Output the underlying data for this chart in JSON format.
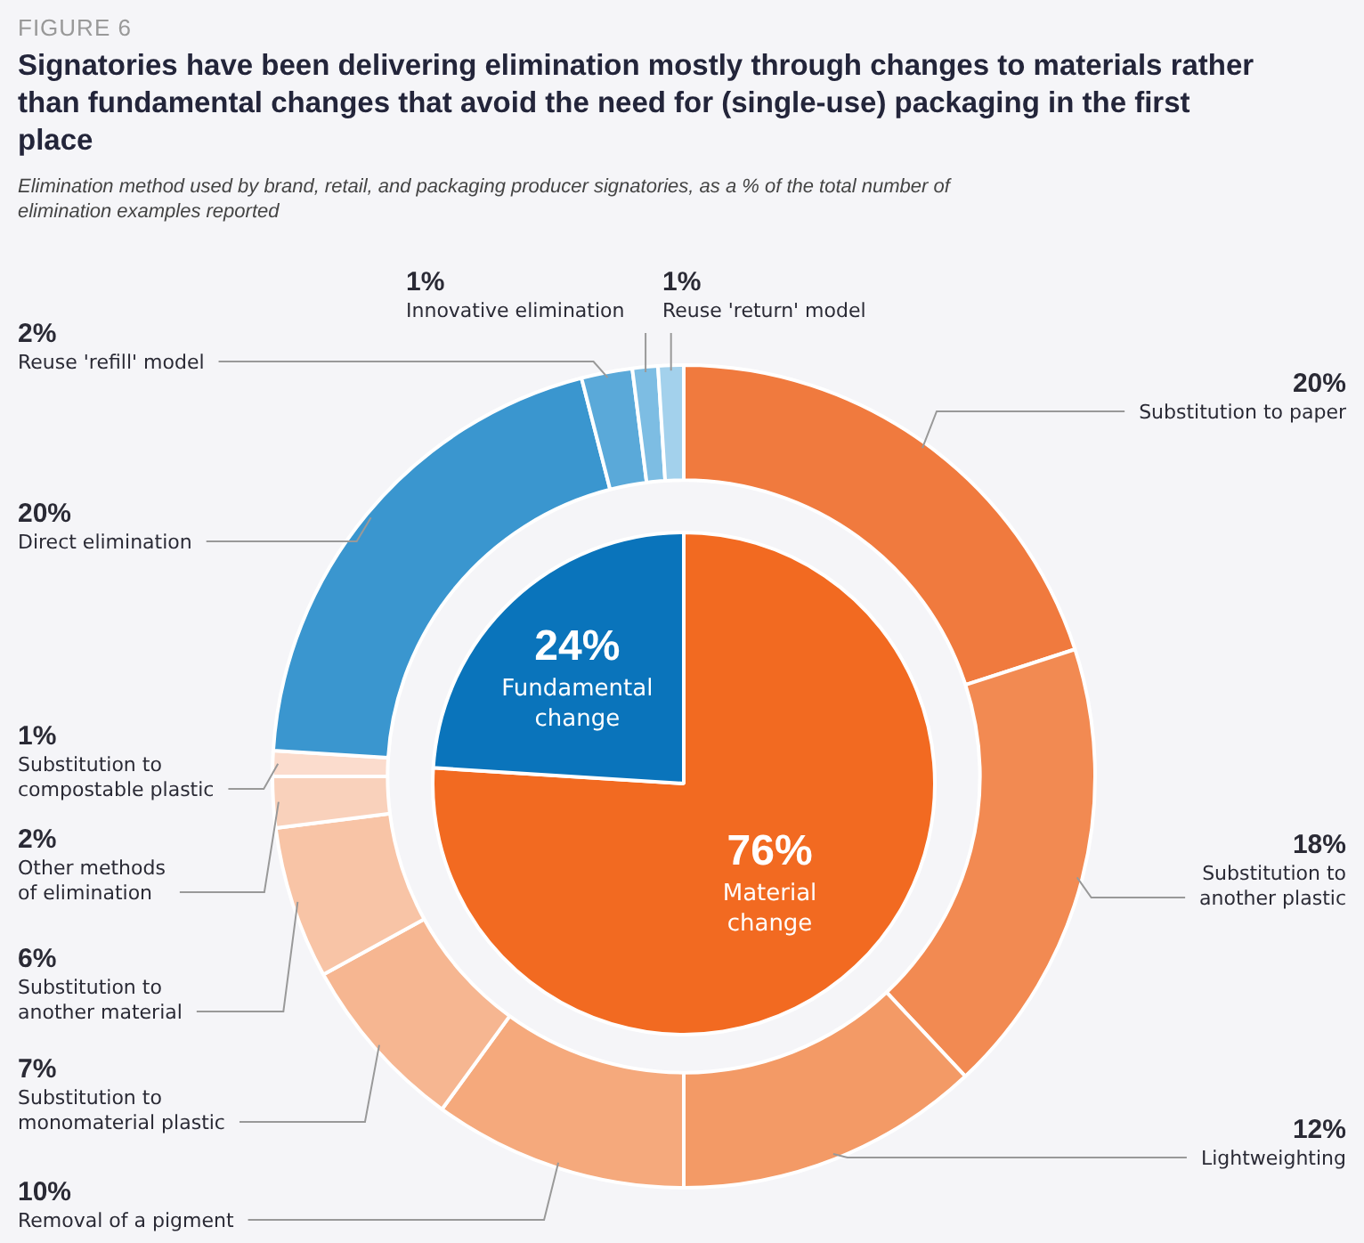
{
  "chart_data": [
    {
      "type": "donut",
      "title": "Signatories have been delivering elimination mostly through changes to materials rather than fundamental changes that avoid the need for (single-use) packaging in the first place",
      "subtitle": "Elimination method used by brand, retail, and packaging producer signatories, as a % of the total number of elimination examples reported",
      "annotations": [
        "FIGURE 6"
      ],
      "categories": [
        "Substitution to paper",
        "Substitution to another plastic",
        "Lightweighting",
        "Removal of a pigment",
        "Substitution to monomaterial plastic",
        "Substitution to another material",
        "Other methods of elimination",
        "Substitution to compostable plastic",
        "Direct elimination",
        "Reuse 'refill' model",
        "Innovative elimination",
        "Reuse 'return' model"
      ],
      "values": [
        20,
        18,
        12,
        10,
        7,
        6,
        2,
        1,
        20,
        2,
        1,
        1
      ],
      "value_labels": [
        "20%",
        "18%",
        "12%",
        "10%",
        "7%",
        "6%",
        "2%",
        "1%",
        "20%",
        "2%",
        "1%",
        "1%"
      ],
      "colors": [
        "#f07a3e",
        "#f28a52",
        "#f39a66",
        "#f5a97c",
        "#f6b691",
        "#f8c4a6",
        "#f9d1bb",
        "#fbdccd",
        "#3a96cf",
        "#5aa9d9",
        "#7dbde3",
        "#a3d1ec"
      ]
    },
    {
      "type": "pie",
      "categories": [
        "Material change",
        "Fundamental change"
      ],
      "values": [
        76,
        24
      ],
      "value_labels": [
        "76%",
        "24%"
      ],
      "colors": [
        "#f26a21",
        "#0a74bb"
      ]
    }
  ]
}
